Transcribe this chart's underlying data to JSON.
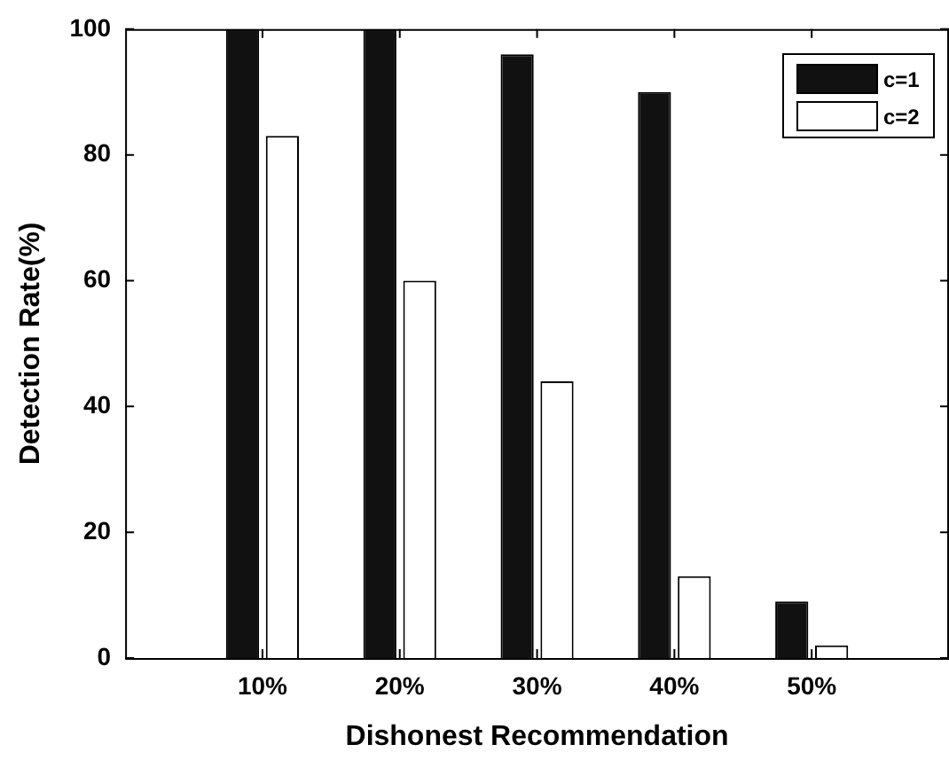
{
  "chart_data": {
    "type": "bar",
    "xlabel": "Dishonest Recommendation",
    "ylabel": "Detection Rate(%)",
    "categories": [
      "10%",
      "20%",
      "30%",
      "40%",
      "50%"
    ],
    "series": [
      {
        "name": "c=1",
        "color": "#111111",
        "values": [
          100,
          100,
          96,
          90,
          9
        ]
      },
      {
        "name": "c=2",
        "color": "#ffffff",
        "values": [
          83,
          60,
          44,
          13,
          2
        ]
      }
    ],
    "ylim": [
      0,
      100
    ],
    "yticks": [
      0,
      20,
      40,
      60,
      80,
      100
    ],
    "grid": false,
    "legend": "top right"
  }
}
